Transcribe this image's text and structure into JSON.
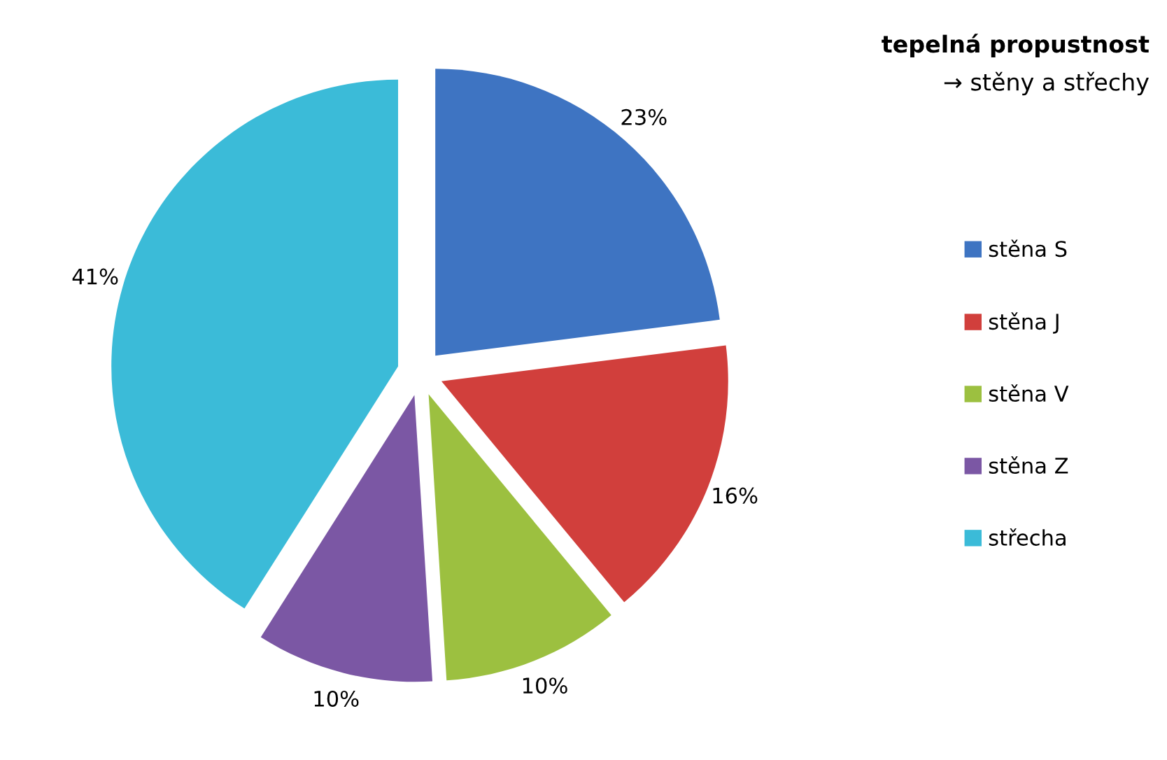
{
  "chart_data": {
    "type": "pie",
    "title": "tepelná propustnost",
    "subtitle": "→ stěny a střechy",
    "categories": [
      "stěna S",
      "stěna J",
      "stěna V",
      "stěna Z",
      "střecha"
    ],
    "values": [
      23,
      16,
      10,
      10,
      41
    ],
    "colors": [
      "#3e74c2",
      "#d13f3c",
      "#9cc040",
      "#7b57a4",
      "#3bbbd8"
    ],
    "value_labels": [
      "23%",
      "16%",
      "10%",
      "10%",
      "41%"
    ],
    "legend": "right"
  }
}
